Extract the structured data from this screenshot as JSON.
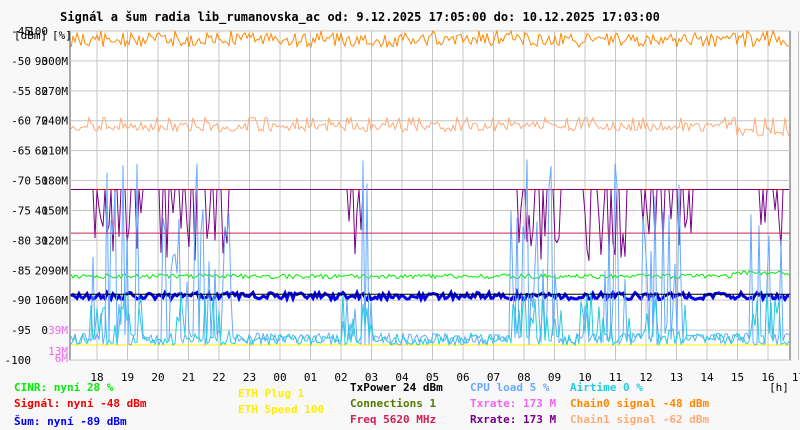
{
  "title": "Signál a šum radia lib_rumanovska_ac od: 9.12.2025 17:05:00 do: 10.12.2025 17:03:00",
  "units": {
    "dbm": "[dBm]",
    "pct": "[%]",
    "hours": "[h]"
  },
  "colors": {
    "cinr": "#00ee00",
    "signal": "#ee0000",
    "noise": "#0000ee",
    "eth_plug": "#ffee00",
    "txpower": "#000000",
    "connections": "#557700",
    "freq": "#cc2255",
    "cpu": "#66aaff",
    "airtime": "#22ccdd",
    "txrate": "#ee66ee",
    "rxrate": "#770088",
    "chain0": "#ff8800",
    "chain1": "#ffaa77",
    "grid": "#c4c4c4"
  },
  "legend": {
    "cinr": "CINR: nyní 28 %",
    "signal": "Signál: nyní -48 dBm",
    "noise": "Šum: nyní -89 dBm",
    "eth_plug": "ETH Plug 1",
    "eth_speed": "ETH Speed 100",
    "txpower": "TxPower 24 dBm",
    "connections": "Connections 1",
    "freq": "Freq 5620 MHz",
    "cpu": "CPU load 5 %",
    "txrate": "Txrate: 173 M",
    "rxrate": "Rxrate: 173 M",
    "airtime": "Airtime 0 %",
    "chain0": "Chain0 signal -48 dBm",
    "chain1": "Chain1 signal -62 dBm"
  },
  "chart_data": {
    "type": "line",
    "y_dbm": {
      "ticks": [
        -45,
        -50,
        -55,
        -60,
        -65,
        -70,
        -75,
        -80,
        -85,
        -90,
        -95,
        -100
      ],
      "range": [
        -100,
        -45
      ]
    },
    "y_pct": {
      "ticks": [
        100,
        90,
        80,
        70,
        60,
        50,
        40,
        30,
        20,
        10,
        0
      ]
    },
    "y_rate": {
      "ticks": [
        "300M",
        "270M",
        "240M",
        "210M",
        "180M",
        "150M",
        "120M",
        "90M",
        "60M"
      ]
    },
    "y_side_labels": {
      "airtime_level": "39M",
      "cpu_level": "13M",
      "noise_level": "6M"
    },
    "x_ticks": [
      "18",
      "19",
      "20",
      "21",
      "22",
      "23",
      "00",
      "01",
      "02",
      "03",
      "04",
      "05",
      "06",
      "07",
      "08",
      "09",
      "10",
      "11",
      "12",
      "13",
      "14",
      "15",
      "16",
      "17"
    ],
    "grid": true,
    "series": [
      {
        "key": "chain0",
        "name": "Chain0 signal",
        "base": -46.5,
        "jitter": 1.2,
        "spike": [
          -45,
          0.04
        ]
      },
      {
        "key": "chain1",
        "name": "Chain1 signal",
        "base": -61.0,
        "jitter": 0.8,
        "spike": [
          -59.5,
          0.1
        ],
        "late": [
          660,
          -62.0
        ]
      },
      {
        "key": "signal",
        "name": "Signál",
        "base": -71.5,
        "flat": true
      },
      {
        "key": "rxrate",
        "name": "Rxrate",
        "base": -71.5,
        "drops": true
      },
      {
        "key": "cinr",
        "name": "CINR",
        "base": -86.0,
        "jitter": 0.4,
        "late": [
          660,
          -85.5
        ]
      },
      {
        "key": "noise",
        "name": "Šum",
        "base": -89.3,
        "jitter": 0.6,
        "noisy": true
      },
      {
        "key": "eth_plug",
        "name": "ETH Plug",
        "base": -97.5,
        "flat": true
      },
      {
        "key": "cpu",
        "name": "CPU load",
        "base": -97.5,
        "spikes": true
      },
      {
        "key": "airtime",
        "name": "Airtime",
        "base": -97.5,
        "spikes": true
      }
    ]
  }
}
